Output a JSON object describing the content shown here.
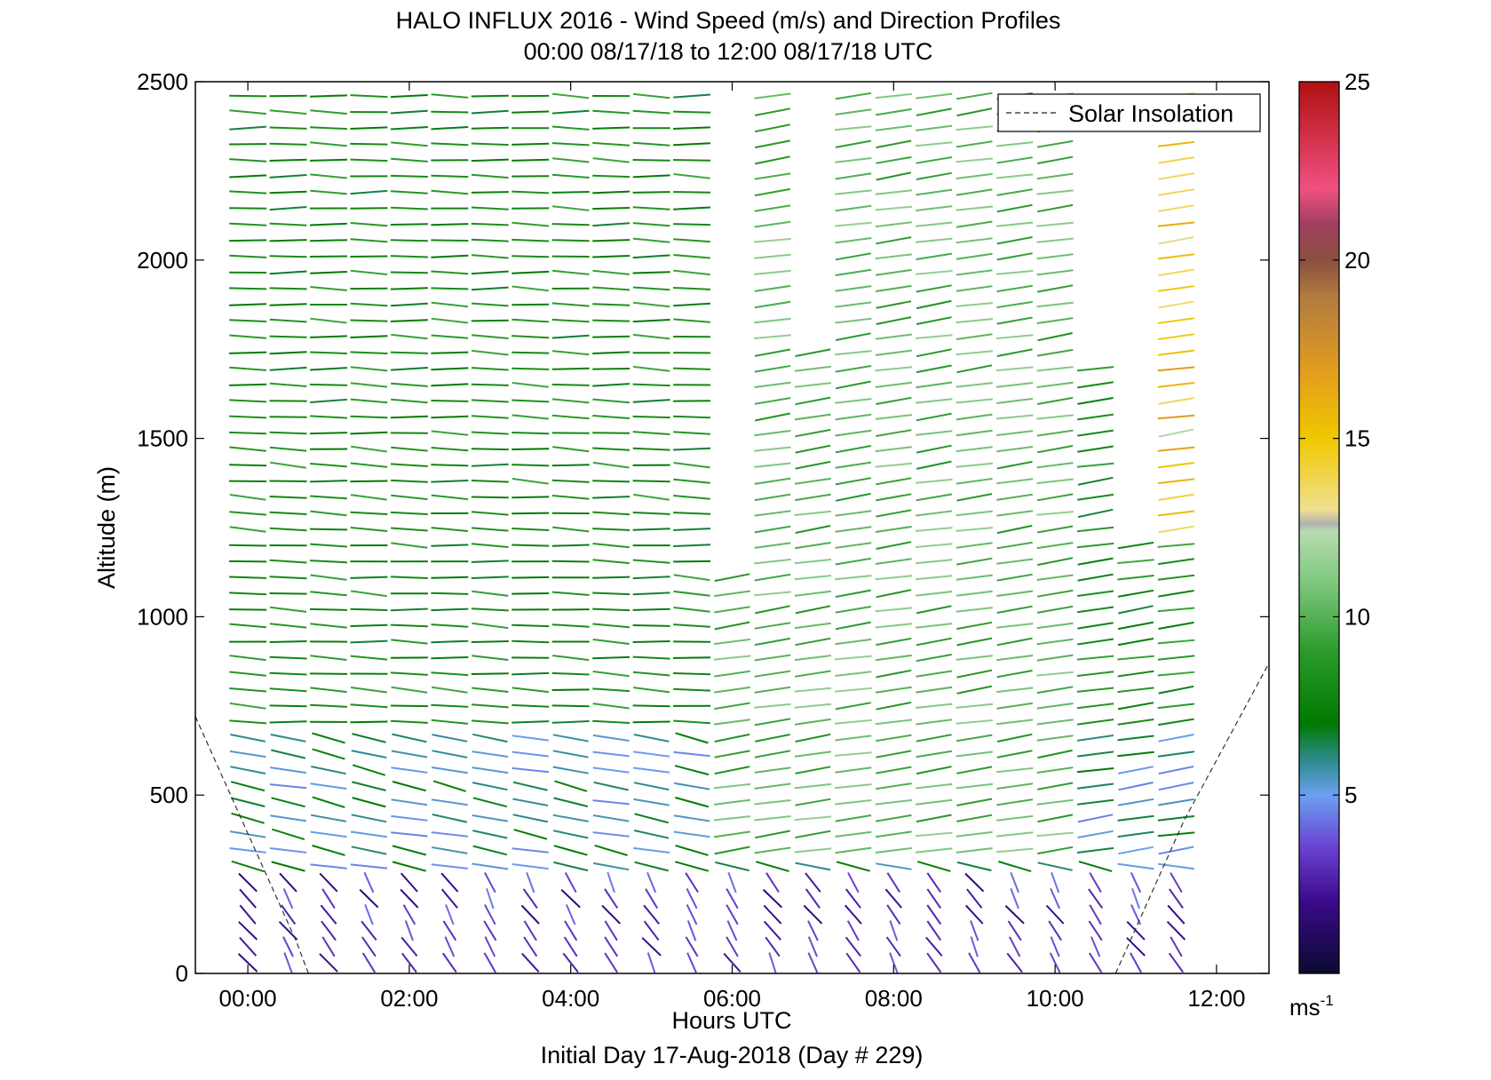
{
  "chart_data": {
    "type": "wind-barb-profile",
    "title": "HALO INFLUX 2016 - Wind Speed (m/s) and Direction Profiles",
    "subtitle": "00:00 08/17/18 to 12:00 08/17/18  UTC",
    "xlabel": "Hours UTC",
    "ylabel": "Altitude (m)",
    "footer": "Initial Day 17-Aug-2018 (Day # 229)",
    "x_ticks": [
      "00:00",
      "02:00",
      "04:00",
      "06:00",
      "08:00",
      "10:00",
      "12:00"
    ],
    "x_tick_hours": [
      0,
      2,
      4,
      6,
      8,
      10,
      12
    ],
    "xlim_hours": [
      -0.65,
      12.65
    ],
    "y_ticks": [
      "0",
      "500",
      "1000",
      "1500",
      "2000",
      "2500"
    ],
    "ylim": [
      0,
      2500
    ],
    "grid": false,
    "legend": {
      "entries": [
        "Solar Insolation"
      ],
      "placement": "top-right"
    },
    "solar_insolation": {
      "morning": [
        [
          -0.65,
          720
        ],
        [
          0.6,
          90
        ],
        [
          0.75,
          0
        ]
      ],
      "evening": [
        [
          10.75,
          0
        ],
        [
          11.6,
          430
        ],
        [
          12.65,
          870
        ]
      ]
    },
    "colorbar": {
      "range": [
        0,
        25
      ],
      "ticks": [
        "5",
        "10",
        "15",
        "20",
        "25"
      ],
      "unit_base": "ms",
      "unit_exp": "-1",
      "stops": [
        {
          "v": 0.0,
          "c": "#0a0a30"
        },
        {
          "v": 2.0,
          "c": "#3a0a8a"
        },
        {
          "v": 3.5,
          "c": "#6a40d0"
        },
        {
          "v": 5.0,
          "c": "#6aa0f0"
        },
        {
          "v": 6.0,
          "c": "#2c8a8a"
        },
        {
          "v": 7.0,
          "c": "#007a00"
        },
        {
          "v": 9.0,
          "c": "#2a9a2a"
        },
        {
          "v": 11.0,
          "c": "#80c880"
        },
        {
          "v": 12.4,
          "c": "#b8dcb0"
        },
        {
          "v": 12.6,
          "c": "#b0b0b0"
        },
        {
          "v": 13.0,
          "c": "#f0e090"
        },
        {
          "v": 15.0,
          "c": "#f0c800"
        },
        {
          "v": 17.0,
          "c": "#e09a20"
        },
        {
          "v": 19.0,
          "c": "#b07a40"
        },
        {
          "v": 20.0,
          "c": "#8a5040"
        },
        {
          "v": 21.0,
          "c": "#a04060"
        },
        {
          "v": 22.0,
          "c": "#f05080"
        },
        {
          "v": 25.0,
          "c": "#b01010"
        }
      ]
    },
    "profile_hours": [
      0.0,
      0.5,
      1.0,
      1.5,
      2.0,
      2.5,
      3.0,
      3.5,
      4.0,
      4.5,
      5.0,
      5.5,
      6.0,
      6.5,
      7.0,
      7.5,
      8.0,
      8.5,
      9.0,
      9.5,
      10.0,
      10.5,
      11.0,
      11.5
    ],
    "profile_top_m": [
      2480,
      2500,
      2500,
      2500,
      2500,
      2500,
      2500,
      2500,
      2500,
      2500,
      2500,
      2500,
      1150,
      2500,
      1750,
      2500,
      2500,
      2500,
      2500,
      2500,
      2500,
      1700,
      1200,
      2500
    ],
    "altitude_step_m": 45,
    "profiles_summary": [
      {
        "layer": "0-300 m",
        "speed_ms": 3,
        "dir_deg": 160
      },
      {
        "layer": "300-700 m",
        "speed_ms": 6,
        "dir_deg": 110
      },
      {
        "layer": "700-1500 m",
        "speed_ms": 8,
        "dir_deg": 95
      },
      {
        "layer": "1500-2500 m",
        "speed_ms": 8,
        "dir_deg": 92
      }
    ]
  }
}
